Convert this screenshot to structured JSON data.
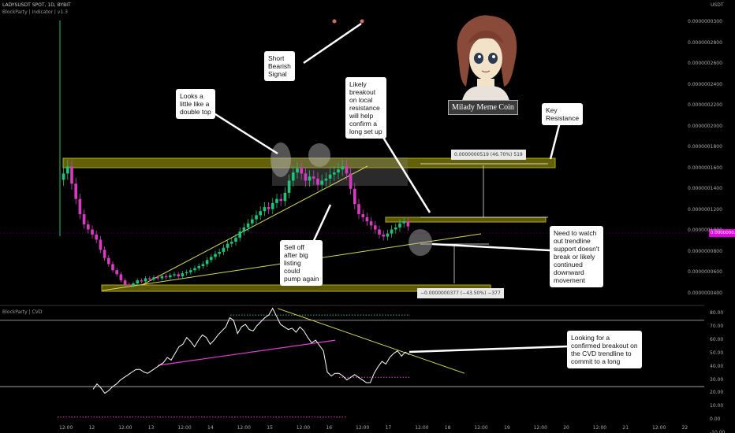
{
  "header": {
    "symbol_line": "LADYSUSDT SPOT, 1D, BYBIT",
    "indicator_line": "BlockParty | Indicator | v1.3",
    "cvd_label": "BlockParty | CVD",
    "currency": "USDT"
  },
  "price_axis": {
    "ticks": [
      "0.0000000300",
      "0.0000002800",
      "0.0000002600",
      "0.0000002400",
      "0.0000002200",
      "0.0000002000",
      "0.0000001800",
      "0.0000001600",
      "0.0000001400",
      "0.0000001200",
      "0.0000001000",
      "0.0000000800",
      "0.0000000600",
      "0.0000000400"
    ],
    "current": "0.0000000..."
  },
  "cvd_axis": {
    "ticks": [
      "80.00",
      "70.00",
      "60.00",
      "50.00",
      "40.00",
      "30.00",
      "20.00",
      "10.00",
      "0.00",
      "-10.00"
    ]
  },
  "time_axis": {
    "ticks": [
      "12:00",
      "12",
      "12:00",
      "13",
      "12:00",
      "14",
      "12:00",
      "15",
      "12:00",
      "16",
      "12:00",
      "17",
      "12:00",
      "18",
      "12:00",
      "19",
      "12:00",
      "20",
      "12:00",
      "21",
      "12:00",
      "22"
    ]
  },
  "measures": {
    "up": "0.0000000519 (46.70%) 519",
    "down": "−0.0000000377 (−43.50%) −377"
  },
  "annotations": {
    "short_bearish": "Short\nBearish\nSignal",
    "double_top": "Looks a\nlittle like a\ndouble top",
    "breakout": "Likely\nbreakout\non local\nresistance\nwill help\nconfirm a\nlong set up",
    "key_resistance": "Key\nResistance",
    "sell_off": "Sell off\nafter big\nlisting\ncould\npump again",
    "watch_trendline": "Need to watch\nout trendline\nsupport doesn't\nbreak or likely\ncontinued\ndownward\nmovement",
    "cvd_breakout": "Looking for a\nconfirmed breakout on\nthe CVD trendline to\ncommit to a long"
  },
  "logo": {
    "caption": "Milady Meme Coin"
  },
  "colors": {
    "up": "#1fc27a",
    "down": "#d63cc1",
    "zone": "#b5b00e",
    "trend": "#d8d85a",
    "cvd_line": "#ffffff",
    "cvd_trend_pink": "#e040d0",
    "price_tag": "#e000e0"
  },
  "chart_data": [
    {
      "type": "candlestick",
      "title": "LADYSUSDT SPOT, 1D, BYBIT",
      "ylabel": "USDT",
      "ylim": [
        3e-08,
        3.1e-07
      ],
      "close": [
        1.55e-07,
        1.62e-07,
        1.45e-07,
        1.3e-07,
        1.15e-07,
        1.05e-07,
        1e-07,
        9.5e-08,
        9e-08,
        8e-08,
        7.2e-08,
        6.6e-08,
        6e-08,
        5.6e-08,
        5e-08,
        4.6e-08,
        4.5e-08,
        4.7e-08,
        5e-08,
        4.9e-08,
        5.2e-08,
        5.1e-08,
        5.3e-08,
        5.2e-08,
        5.4e-08,
        5.3e-08,
        5.5e-08,
        5.6e-08,
        5.4e-08,
        5.7e-08,
        5.8e-08,
        6e-08,
        6.2e-08,
        6.4e-08,
        6.6e-08,
        7e-08,
        7.3e-08,
        7.6e-08,
        7.8e-08,
        8.2e-08,
        8.6e-08,
        8.8e-08,
        9.2e-08,
        9.8e-08,
        1.02e-07,
        1.06e-07,
        1.1e-07,
        1.14e-07,
        1.18e-07,
        1.22e-07,
        1.2e-07,
        1.26e-07,
        1.3e-07,
        1.28e-07,
        1.36e-07,
        1.48e-07,
        1.56e-07,
        1.6e-07,
        1.55e-07,
        1.48e-07,
        1.52e-07,
        1.5e-07,
        1.44e-07,
        1.48e-07,
        1.5e-07,
        1.54e-07,
        1.56e-07,
        1.59e-07,
        1.62e-07,
        1.55e-07,
        1.4e-07,
        1.25e-07,
        1.15e-07,
        1.12e-07,
        1.08e-07,
        1.04e-07,
        1e-07,
        9.5e-08,
        9.3e-08,
        9.6e-08,
        1e-07,
        1.02e-07,
        1.06e-07,
        1.08e-07,
        1.03e-07
      ],
      "resistance_zone": [
        1.58e-07,
        1.67e-07
      ],
      "support_zone": [
        4e-08,
        4.5e-08
      ],
      "local_resistance": 1.12e-07
    },
    {
      "type": "line",
      "title": "BlockParty | CVD",
      "ylim": [
        -10,
        85
      ],
      "horizontal_levels": [
        75,
        25
      ],
      "values": [
        23,
        27,
        24,
        20,
        22,
        25,
        27,
        30,
        32,
        34,
        36,
        38,
        38,
        36,
        35,
        37,
        39,
        41,
        43,
        47,
        45,
        50,
        55,
        57,
        62,
        59,
        55,
        60,
        64,
        62,
        57,
        60,
        64,
        67,
        70,
        77,
        75,
        65,
        70,
        72,
        68,
        67,
        71,
        74,
        77,
        79,
        84,
        78,
        72,
        70,
        68,
        69,
        66,
        70,
        67,
        62,
        58,
        60,
        56,
        52,
        36,
        33,
        35,
        35,
        33,
        30,
        32,
        34,
        32,
        30,
        28,
        28,
        35,
        40,
        44,
        42,
        47,
        50,
        52,
        48,
        51,
        49
      ]
    }
  ]
}
